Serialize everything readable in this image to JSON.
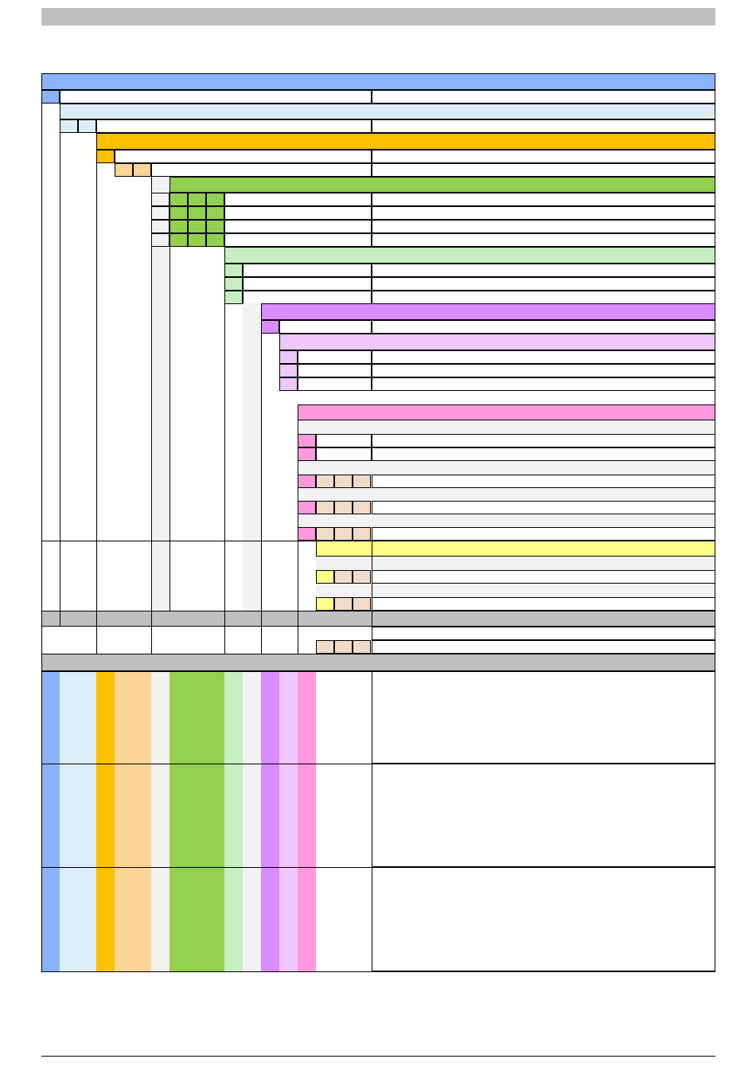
{
  "page": {
    "header_text": "",
    "footer_text": ""
  },
  "colors": {
    "level1": "#8ab4ff",
    "level1_light": "#dcedf5",
    "level2": "#ffc000",
    "level2_light": "#fbd595",
    "level3_bg": "#f2f2f2",
    "level3": "#92d050",
    "level3_light": "#c6efc2",
    "level4": "#d98cff",
    "level4_light": "#efc8ff",
    "level5": "#ff99dd",
    "level5_tan": "#f0dcc8",
    "yellow": "#ffff88",
    "gray_band": "#c0c0c0",
    "row_gray": "#f2f2f2"
  },
  "table": {
    "rows": []
  }
}
